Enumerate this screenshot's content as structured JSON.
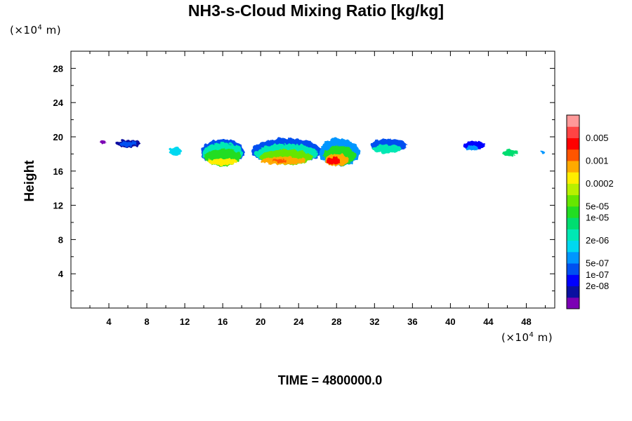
{
  "chart_data": {
    "type": "heatmap",
    "title": "NH3-s-Cloud Mixing Ratio [kg/kg]",
    "ylabel": "Height",
    "x_unit": {
      "prefix": "(×10",
      "exp": "4",
      "suffix": " m)"
    },
    "y_unit": {
      "prefix": "(×10",
      "exp": "4",
      "suffix": " m)"
    },
    "footer": "TIME = 4800000.0",
    "xlim": [
      0,
      51
    ],
    "ylim": [
      0,
      30
    ],
    "x_ticks": [
      4,
      8,
      12,
      16,
      20,
      24,
      28,
      32,
      36,
      40,
      44,
      48
    ],
    "y_ticks": [
      4,
      8,
      12,
      16,
      20,
      24,
      28
    ],
    "colorbar": {
      "levels": [
        {
          "color": "#7b00b4"
        },
        {
          "color": "#0a10a0"
        },
        {
          "color": "#0000ff"
        },
        {
          "color": "#0050f0"
        },
        {
          "color": "#0096ff"
        },
        {
          "color": "#00d8f0"
        },
        {
          "color": "#00e8b4"
        },
        {
          "color": "#00dd70"
        },
        {
          "color": "#22dd22"
        },
        {
          "color": "#66e600"
        },
        {
          "color": "#b8f000"
        },
        {
          "color": "#ffee00"
        },
        {
          "color": "#ffaa00"
        },
        {
          "color": "#ff5500"
        },
        {
          "color": "#ff0000"
        },
        {
          "color": "#ff4444"
        },
        {
          "color": "#ff9999"
        }
      ],
      "labels": [
        {
          "text": "2e-08",
          "after_level": 2
        },
        {
          "text": "1e-07",
          "after_level": 3
        },
        {
          "text": "5e-07",
          "after_level": 4
        },
        {
          "text": "2e-06",
          "after_level": 6
        },
        {
          "text": "1e-05",
          "after_level": 8
        },
        {
          "text": "5e-05",
          "after_level": 9
        },
        {
          "text": "0.0002",
          "after_level": 11
        },
        {
          "text": "0.001",
          "after_level": 13
        },
        {
          "text": "0.005",
          "after_level": 15
        }
      ]
    },
    "cloud_patches": [
      {
        "x": 3.4,
        "y": 19.4,
        "w": 0.5,
        "h": 0.4,
        "level": 0
      },
      {
        "x": 6.0,
        "y": 19.2,
        "w": 2.6,
        "h": 0.9,
        "level": 1
      },
      {
        "x": 6.0,
        "y": 19.2,
        "w": 1.8,
        "h": 0.6,
        "level": 3
      },
      {
        "x": 11.0,
        "y": 18.3,
        "w": 1.2,
        "h": 1.0,
        "level": 5
      },
      {
        "x": 16.0,
        "y": 18.2,
        "w": 4.6,
        "h": 3.1,
        "level": 3
      },
      {
        "x": 16.0,
        "y": 18.0,
        "w": 4.2,
        "h": 2.6,
        "level": 6
      },
      {
        "x": 16.0,
        "y": 17.6,
        "w": 3.8,
        "h": 2.0,
        "level": 8
      },
      {
        "x": 16.0,
        "y": 17.1,
        "w": 3.2,
        "h": 0.8,
        "level": 11
      },
      {
        "x": 22.7,
        "y": 18.3,
        "w": 7.4,
        "h": 3.0,
        "level": 3
      },
      {
        "x": 22.7,
        "y": 18.0,
        "w": 6.6,
        "h": 2.4,
        "level": 6
      },
      {
        "x": 22.7,
        "y": 17.6,
        "w": 5.6,
        "h": 1.8,
        "level": 9
      },
      {
        "x": 22.4,
        "y": 17.2,
        "w": 4.8,
        "h": 0.9,
        "level": 12
      },
      {
        "x": 22.0,
        "y": 17.2,
        "w": 1.6,
        "h": 0.4,
        "level": 13
      },
      {
        "x": 28.3,
        "y": 18.2,
        "w": 4.2,
        "h": 3.3,
        "level": 4
      },
      {
        "x": 28.3,
        "y": 17.8,
        "w": 3.4,
        "h": 2.4,
        "level": 8
      },
      {
        "x": 28.0,
        "y": 17.3,
        "w": 2.6,
        "h": 1.4,
        "level": 12
      },
      {
        "x": 27.7,
        "y": 17.2,
        "w": 1.6,
        "h": 0.8,
        "level": 14
      },
      {
        "x": 33.5,
        "y": 19.0,
        "w": 3.8,
        "h": 1.6,
        "level": 3
      },
      {
        "x": 33.3,
        "y": 18.6,
        "w": 3.0,
        "h": 1.0,
        "level": 6
      },
      {
        "x": 42.5,
        "y": 19.0,
        "w": 2.3,
        "h": 0.9,
        "level": 2
      },
      {
        "x": 42.3,
        "y": 18.7,
        "w": 1.2,
        "h": 0.6,
        "level": 4
      },
      {
        "x": 46.3,
        "y": 18.1,
        "w": 1.5,
        "h": 0.8,
        "level": 7
      },
      {
        "x": 49.8,
        "y": 18.2,
        "w": 0.5,
        "h": 0.4,
        "level": 4
      }
    ]
  }
}
